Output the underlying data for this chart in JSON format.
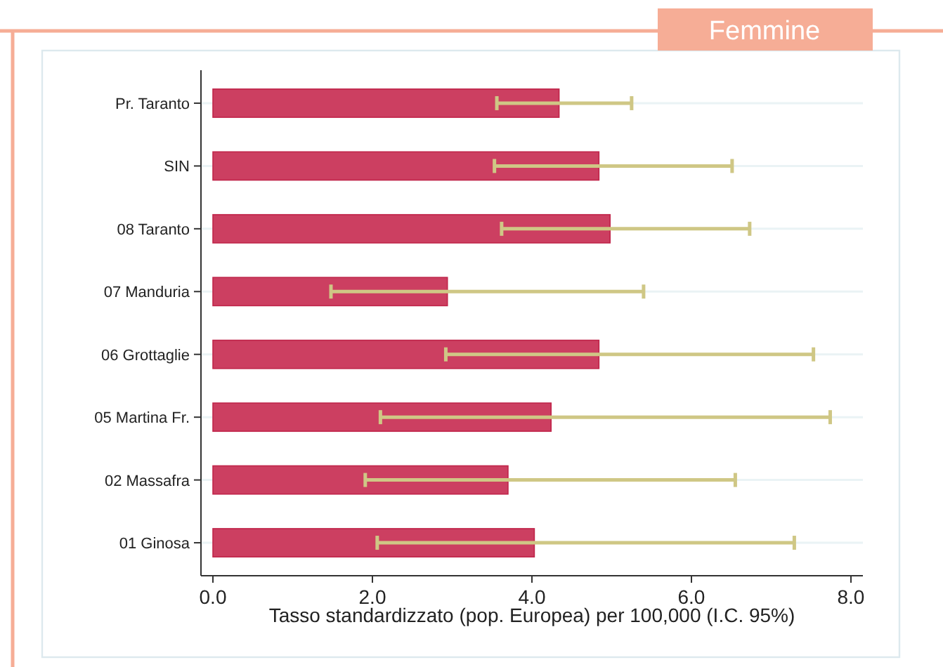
{
  "chart_data": {
    "type": "bar",
    "orientation": "horizontal",
    "title": "Femmine",
    "xlabel": "Tasso standardizzato (pop. Europea) per 100,000 (I.C. 95%)",
    "categories": [
      "Pr. Taranto",
      "SIN",
      "08 Taranto",
      "07 Manduria",
      "06 Grottaglie",
      "05 Martina Fr.",
      "02 Massafra",
      "01 Ginosa"
    ],
    "values": [
      4.34,
      4.84,
      4.98,
      2.94,
      4.84,
      4.24,
      3.7,
      4.03
    ],
    "errors": [
      [
        3.56,
        5.25
      ],
      [
        3.53,
        6.51
      ],
      [
        3.62,
        6.73
      ],
      [
        1.48,
        5.4
      ],
      [
        2.92,
        7.53
      ],
      [
        2.1,
        7.74
      ],
      [
        1.91,
        6.55
      ],
      [
        2.06,
        7.29
      ]
    ],
    "color": "#cc3f61",
    "xlim": [
      -0.15,
      8.15
    ],
    "xticks": [
      {
        "value": 0,
        "label": "0.0"
      },
      {
        "value": 2,
        "label": "2.0"
      },
      {
        "value": 4,
        "label": "4.0"
      },
      {
        "value": 6,
        "label": "6.0"
      },
      {
        "value": 8,
        "label": "8.0"
      }
    ],
    "grid": "y"
  }
}
